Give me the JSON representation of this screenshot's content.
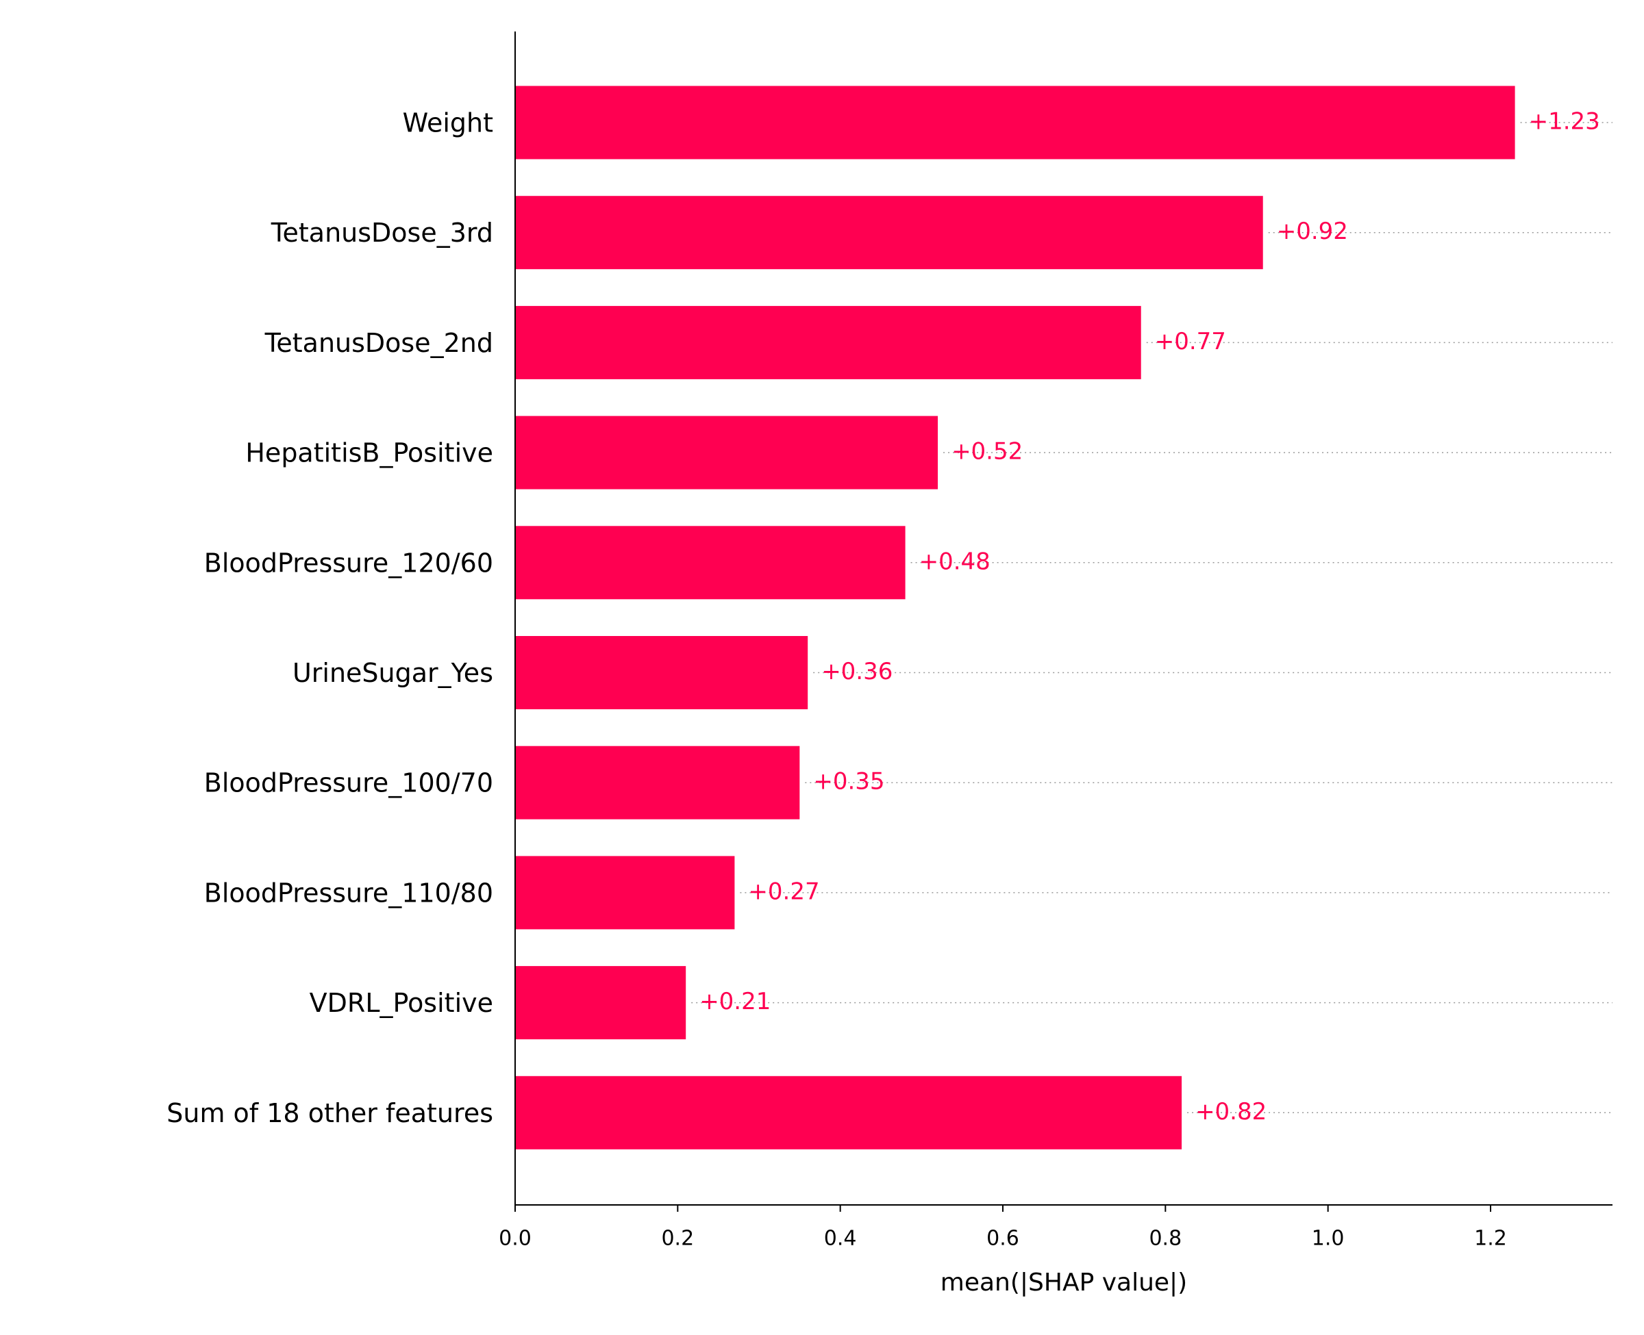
{
  "chart_data": {
    "type": "barh",
    "xlabel": "mean(|SHAP value|)",
    "categories": [
      "Weight",
      "TetanusDose_3rd",
      "TetanusDose_2nd",
      "HepatitisB_Positive",
      "BloodPressure_120/60",
      "UrineSugar_Yes",
      "BloodPressure_100/70",
      "BloodPressure_110/80",
      "VDRL_Positive",
      "Sum of 18 other features"
    ],
    "values": [
      1.23,
      0.92,
      0.77,
      0.52,
      0.48,
      0.36,
      0.35,
      0.27,
      0.21,
      0.82
    ],
    "value_labels": [
      "+1.23",
      "+0.92",
      "+0.77",
      "+0.52",
      "+0.48",
      "+0.36",
      "+0.35",
      "+0.27",
      "+0.21",
      "+0.82"
    ],
    "color": "#ff0051",
    "xlim": [
      0,
      1.35
    ],
    "xticks": [
      {
        "value": 0,
        "label": "0.0"
      },
      {
        "value": 0.2,
        "label": "0.2"
      },
      {
        "value": 0.4,
        "label": "0.4"
      },
      {
        "value": 0.6,
        "label": "0.6"
      },
      {
        "value": 0.8,
        "label": "0.8"
      },
      {
        "value": 1,
        "label": "1.0"
      },
      {
        "value": 1.2,
        "label": "1.2"
      }
    ]
  }
}
